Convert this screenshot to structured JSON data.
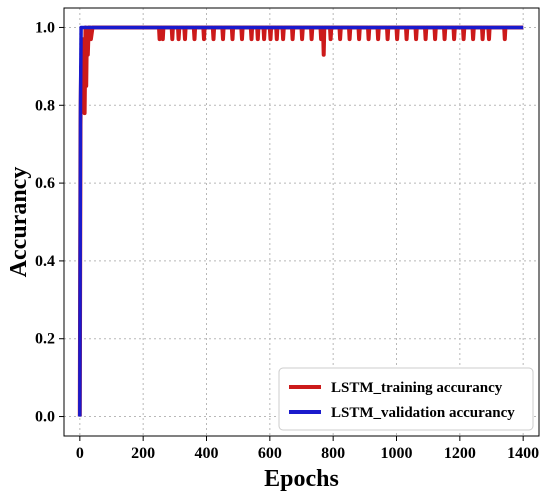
{
  "chart_data": {
    "type": "line",
    "xlabel": "Epochs",
    "ylabel": "Accurancy",
    "xlim": [
      -50,
      1450
    ],
    "ylim": [
      -0.05,
      1.05
    ],
    "xticks": [
      0,
      200,
      400,
      600,
      800,
      1000,
      1200,
      1400
    ],
    "yticks": [
      0.0,
      0.2,
      0.4,
      0.6,
      0.8,
      1.0
    ],
    "ytick_labels": [
      "0.0",
      "0.2",
      "0.4",
      "0.6",
      "0.8",
      "1.0"
    ],
    "grid": true,
    "legend_position": "bottom-right",
    "series": [
      {
        "name": "LSTM_training accurancy",
        "color": "#cc1a1a",
        "x": [
          0,
          2,
          4,
          6,
          8,
          10,
          12,
          15,
          18,
          20,
          22,
          25,
          28,
          30,
          32,
          35,
          40,
          250,
          252,
          254,
          260,
          262,
          264,
          290,
          292,
          294,
          310,
          312,
          314,
          330,
          332,
          334,
          360,
          362,
          364,
          390,
          392,
          394,
          420,
          422,
          424,
          450,
          452,
          454,
          480,
          482,
          484,
          510,
          512,
          514,
          540,
          542,
          544,
          560,
          562,
          564,
          580,
          582,
          584,
          600,
          602,
          604,
          620,
          622,
          624,
          640,
          642,
          644,
          670,
          672,
          674,
          700,
          702,
          704,
          730,
          732,
          734,
          760,
          762,
          764,
          768,
          770,
          772,
          790,
          792,
          794,
          820,
          822,
          824,
          850,
          852,
          854,
          880,
          882,
          884,
          910,
          912,
          914,
          940,
          942,
          944,
          970,
          972,
          974,
          1000,
          1002,
          1004,
          1030,
          1032,
          1034,
          1060,
          1062,
          1064,
          1090,
          1092,
          1094,
          1120,
          1122,
          1124,
          1150,
          1152,
          1154,
          1180,
          1182,
          1184,
          1210,
          1212,
          1214,
          1240,
          1242,
          1244,
          1270,
          1272,
          1274,
          1290,
          1292,
          1294,
          1340,
          1342,
          1344,
          1400
        ],
        "y": [
          0.0,
          0.75,
          0.9,
          0.85,
          0.95,
          0.8,
          0.97,
          0.78,
          1.0,
          0.85,
          0.97,
          0.93,
          1.0,
          0.97,
          1.0,
          0.97,
          1.0,
          1.0,
          0.97,
          1.0,
          1.0,
          0.97,
          1.0,
          1.0,
          0.97,
          1.0,
          1.0,
          0.97,
          1.0,
          1.0,
          0.97,
          1.0,
          1.0,
          0.97,
          1.0,
          1.0,
          0.97,
          1.0,
          1.0,
          0.97,
          1.0,
          1.0,
          0.97,
          1.0,
          1.0,
          0.97,
          1.0,
          1.0,
          0.97,
          1.0,
          1.0,
          0.97,
          1.0,
          1.0,
          0.97,
          1.0,
          1.0,
          0.97,
          1.0,
          1.0,
          0.97,
          1.0,
          1.0,
          0.97,
          1.0,
          1.0,
          0.97,
          1.0,
          1.0,
          0.97,
          1.0,
          1.0,
          0.97,
          1.0,
          1.0,
          0.97,
          1.0,
          1.0,
          0.97,
          1.0,
          1.0,
          0.93,
          1.0,
          1.0,
          0.97,
          1.0,
          1.0,
          0.97,
          1.0,
          1.0,
          0.97,
          1.0,
          1.0,
          0.97,
          1.0,
          1.0,
          0.97,
          1.0,
          1.0,
          0.97,
          1.0,
          1.0,
          0.97,
          1.0,
          1.0,
          0.97,
          1.0,
          1.0,
          0.97,
          1.0,
          1.0,
          0.97,
          1.0,
          1.0,
          0.97,
          1.0,
          1.0,
          0.97,
          1.0,
          1.0,
          0.97,
          1.0,
          1.0,
          0.97,
          1.0,
          1.0,
          0.97,
          1.0,
          1.0,
          0.97,
          1.0,
          1.0,
          0.97,
          1.0,
          1.0,
          0.97,
          1.0,
          1.0,
          0.97,
          1.0,
          1.0
        ]
      },
      {
        "name": "LSTM_validation accurancy",
        "color": "#1a1acc",
        "x": [
          0,
          2,
          4,
          1400
        ],
        "y": [
          0.0,
          0.8,
          1.0,
          1.0
        ]
      }
    ]
  }
}
